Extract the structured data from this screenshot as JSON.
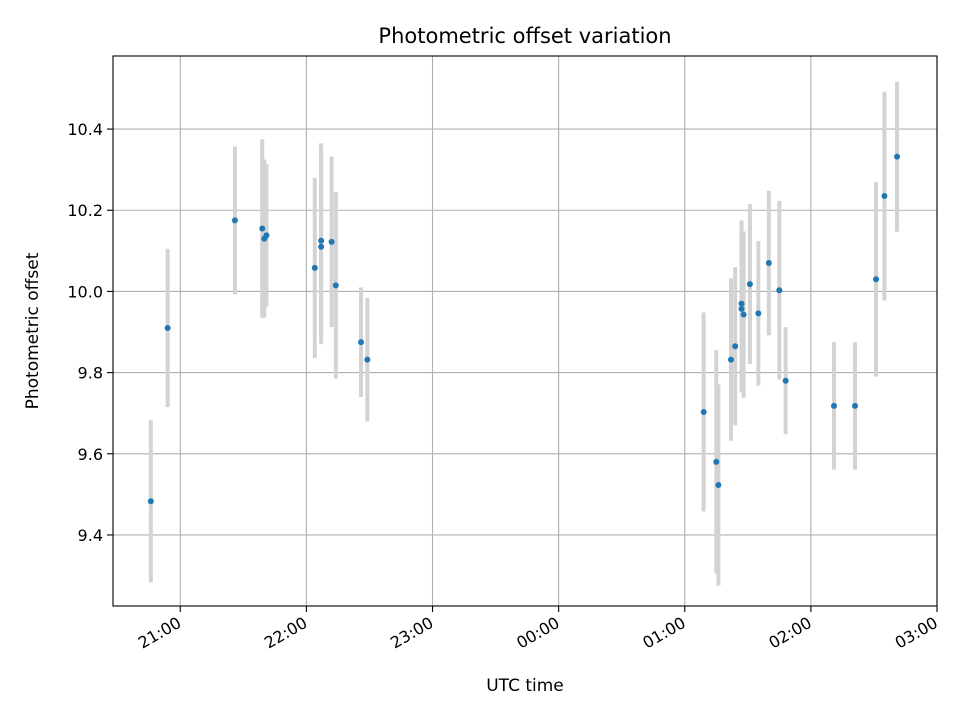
{
  "chart_data": {
    "type": "scatter",
    "title": "Photometric offset variation",
    "xlabel": "UTC time",
    "ylabel": "Photometric offset",
    "x_ticks": [
      "21:00",
      "22:00",
      "23:00",
      "00:00",
      "01:00",
      "02:00",
      "03:00"
    ],
    "y_ticks": [
      "9.4",
      "9.6",
      "9.8",
      "10.0",
      "10.2",
      "10.4"
    ],
    "xlim": [
      "20:28",
      "03:00"
    ],
    "ylim": [
      9.225,
      10.58
    ],
    "grid": true,
    "colors": {
      "point": "#1f77b4",
      "errorbar": "#d3d3d3",
      "grid": "#b0b0b0"
    },
    "points": [
      {
        "x": "20:46",
        "y": 9.483,
        "yerr": 0.2
      },
      {
        "x": "20:54",
        "y": 9.91,
        "yerr": 0.195
      },
      {
        "x": "21:26",
        "y": 10.175,
        "yerr": 0.182
      },
      {
        "x": "21:39",
        "y": 10.155,
        "yerr": 0.22
      },
      {
        "x": "21:40",
        "y": 10.13,
        "yerr": 0.195
      },
      {
        "x": "21:41",
        "y": 10.138,
        "yerr": 0.175
      },
      {
        "x": "22:04",
        "y": 10.058,
        "yerr": 0.222
      },
      {
        "x": "22:07",
        "y": 10.11,
        "yerr": 0.24
      },
      {
        "x": "22:07",
        "y": 10.125,
        "yerr": 0.24
      },
      {
        "x": "22:12",
        "y": 10.122,
        "yerr": 0.21
      },
      {
        "x": "22:14",
        "y": 10.015,
        "yerr": 0.23
      },
      {
        "x": "22:26",
        "y": 9.875,
        "yerr": 0.135
      },
      {
        "x": "22:29",
        "y": 9.832,
        "yerr": 0.152
      },
      {
        "x": "01:09",
        "y": 9.703,
        "yerr": 0.245
      },
      {
        "x": "01:15",
        "y": 9.58,
        "yerr": 0.275
      },
      {
        "x": "01:16",
        "y": 9.523,
        "yerr": 0.248
      },
      {
        "x": "01:22",
        "y": 9.832,
        "yerr": 0.2
      },
      {
        "x": "01:24",
        "y": 9.865,
        "yerr": 0.195
      },
      {
        "x": "01:27",
        "y": 9.97,
        "yerr": 0.205
      },
      {
        "x": "01:27",
        "y": 9.957,
        "yerr": 0.205
      },
      {
        "x": "01:28",
        "y": 9.943,
        "yerr": 0.205
      },
      {
        "x": "01:31",
        "y": 10.018,
        "yerr": 0.197
      },
      {
        "x": "01:35",
        "y": 9.946,
        "yerr": 0.178
      },
      {
        "x": "01:40",
        "y": 10.07,
        "yerr": 0.178
      },
      {
        "x": "01:45",
        "y": 10.003,
        "yerr": 0.22
      },
      {
        "x": "01:48",
        "y": 9.78,
        "yerr": 0.132
      },
      {
        "x": "02:11",
        "y": 9.718,
        "yerr": 0.157
      },
      {
        "x": "02:21",
        "y": 9.718,
        "yerr": 0.157
      },
      {
        "x": "02:31",
        "y": 10.03,
        "yerr": 0.24
      },
      {
        "x": "02:35",
        "y": 10.235,
        "yerr": 0.257
      },
      {
        "x": "02:41",
        "y": 10.332,
        "yerr": 0.185
      }
    ]
  }
}
